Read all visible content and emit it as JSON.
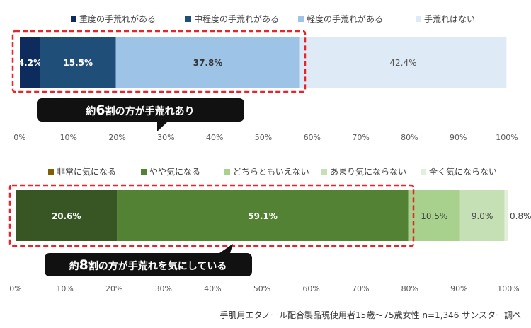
{
  "chart_data": [
    {
      "type": "bar",
      "orientation": "horizontal",
      "stacked": true,
      "xlim": [
        0,
        100
      ],
      "x_ticks": [
        "0%",
        "10%",
        "20%",
        "30%",
        "40%",
        "50%",
        "60%",
        "70%",
        "80%",
        "90%",
        "100%"
      ],
      "series": [
        {
          "name": "重度の手荒れがある",
          "value": 4.2,
          "label": "4.2%",
          "color": "#0d2b5c",
          "label_color": "#ffffff"
        },
        {
          "name": "中程度の手荒れがある",
          "value": 15.5,
          "label": "15.5%",
          "color": "#1f4e79",
          "label_color": "#ffffff"
        },
        {
          "name": "軽度の手荒れがある",
          "value": 37.8,
          "label": "37.8%",
          "color": "#9dc3e6",
          "label_color": "#333333"
        },
        {
          "name": "手荒れはない",
          "value": 42.4,
          "label": "42.4%",
          "color": "#deebf7",
          "label_color": "#555555"
        }
      ],
      "highlight": {
        "from": 0,
        "to": 57.5,
        "color": "#e8232a"
      },
      "callout": {
        "prefix": "約",
        "number": "6",
        "suffix": "割の方が手荒れあり"
      }
    },
    {
      "type": "bar",
      "orientation": "horizontal",
      "stacked": true,
      "xlim": [
        0,
        100
      ],
      "x_ticks": [
        "0%",
        "10%",
        "20%",
        "30%",
        "40%",
        "50%",
        "60%",
        "70%",
        "80%",
        "90%",
        "100%"
      ],
      "series": [
        {
          "name": "非常に気になる",
          "value": 20.6,
          "label": "20.6%",
          "color": "#375623",
          "label_color": "#ffffff",
          "legend_color": "#7f6000"
        },
        {
          "name": "やや気になる",
          "value": 59.1,
          "label": "59.1%",
          "color": "#548235",
          "label_color": "#ffffff"
        },
        {
          "name": "どちらともいえない",
          "value": 10.5,
          "label": "10.5%",
          "color": "#a9d18e",
          "label_color": "#444444"
        },
        {
          "name": "あまり気にならない",
          "value": 9.0,
          "label": "9.0%",
          "color": "#c5e0b4",
          "label_color": "#444444"
        },
        {
          "name": "全く気にならない",
          "value": 0.8,
          "label": "0.8%",
          "color": "#e2efda",
          "label_color": "#444444"
        }
      ],
      "highlight": {
        "from": 0,
        "to": 79.7,
        "color": "#e8232a"
      },
      "callout": {
        "prefix": "約",
        "number": "8",
        "suffix": "割の方が手荒れを気にしている"
      }
    }
  ],
  "footnote": "手肌用エタノール配合製品現使用者15歳〜75歳女性 n=1,346 サンスター調べ"
}
